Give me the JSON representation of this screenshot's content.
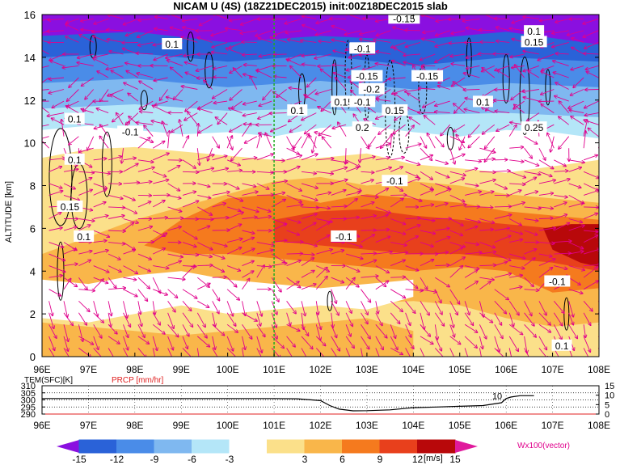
{
  "title": "NICAM U (4S) (18Z21DEC2015) init:00Z18DEC2015 slab",
  "colors": {
    "vector": "#e0008c",
    "precip_label": "#e02020",
    "marker_line": "#22aa22",
    "scale": [
      "#8a10e0",
      "#2a62d8",
      "#4a8ce8",
      "#7fb8f0",
      "#b4e6f8",
      "#ffffff",
      "#fbe08a",
      "#f9b64a",
      "#f57a1e",
      "#e8401c",
      "#b8080a",
      "#e01a9c"
    ]
  },
  "chart_data": [
    {
      "type": "heatmap",
      "title": "NICAM U (4S) (18Z21DEC2015) init:00Z18DEC2015 slab",
      "xlabel": "",
      "ylabel": "ALTITUDE [km]",
      "x_ticks": [
        "96E",
        "97E",
        "98E",
        "99E",
        "100E",
        "101E",
        "102E",
        "103E",
        "104E",
        "105E",
        "106E",
        "107E",
        "108E"
      ],
      "y_ticks": [
        "0",
        "2",
        "4",
        "6",
        "8",
        "10",
        "12",
        "14",
        "16"
      ],
      "xlim": [
        96,
        108
      ],
      "ylim": [
        0,
        16
      ],
      "vertical_marker_x": 101,
      "contour_labels": [
        {
          "text": "0.1",
          "x": 98.8,
          "y": 14.6
        },
        {
          "text": "-0.1",
          "x": 102.9,
          "y": 14.4
        },
        {
          "text": "-0.15",
          "x": 103.8,
          "y": 15.8
        },
        {
          "text": "0.1",
          "x": 106.6,
          "y": 15.2
        },
        {
          "text": "0.15",
          "x": 106.6,
          "y": 14.7
        },
        {
          "text": "-0.15",
          "x": 103.0,
          "y": 13.1
        },
        {
          "text": "-0.15",
          "x": 104.3,
          "y": 13.1
        },
        {
          "text": "-0.2",
          "x": 103.1,
          "y": 12.5
        },
        {
          "text": "0.15",
          "x": 102.5,
          "y": 11.9
        },
        {
          "text": "-0.1",
          "x": 102.9,
          "y": 11.9
        },
        {
          "text": "0.1",
          "x": 101.5,
          "y": 11.5
        },
        {
          "text": "0.15",
          "x": 103.6,
          "y": 11.5
        },
        {
          "text": "0.1",
          "x": 105.5,
          "y": 11.9
        },
        {
          "text": "0.1",
          "x": 96.7,
          "y": 11.1
        },
        {
          "text": "-0.1",
          "x": 97.9,
          "y": 10.5
        },
        {
          "text": "0.2",
          "x": 102.9,
          "y": 10.7
        },
        {
          "text": "0.25",
          "x": 106.6,
          "y": 10.7
        },
        {
          "text": "0.1",
          "x": 96.7,
          "y": 9.2
        },
        {
          "text": "-0.1",
          "x": 103.6,
          "y": 8.2
        },
        {
          "text": "0.15",
          "x": 96.6,
          "y": 7.0
        },
        {
          "text": "0.1",
          "x": 96.9,
          "y": 5.6
        },
        {
          "text": "-0.1",
          "x": 102.5,
          "y": 5.6
        },
        {
          "text": "-0.1",
          "x": 107.1,
          "y": 3.5
        },
        {
          "text": "0.1",
          "x": 107.2,
          "y": 0.5
        }
      ]
    },
    {
      "type": "line",
      "series": [
        {
          "name": "TEM(SFC)[K]",
          "x": [
            96,
            97,
            98,
            99,
            100,
            101,
            101.5,
            102,
            102.2,
            102.4,
            102.7,
            103,
            103.5,
            104,
            104.5,
            105,
            105.5,
            105.9,
            106,
            106.1,
            106.3,
            106.6
          ],
          "values": [
            301,
            301,
            301,
            301,
            301,
            301,
            300.8,
            299.5,
            296,
            293.5,
            292.3,
            292.4,
            293,
            294.5,
            295,
            295.5,
            296,
            298,
            301,
            302,
            303,
            303
          ]
        },
        {
          "name": "PRCP [mm/hr]",
          "x": [
            96,
            108
          ],
          "values": [
            0,
            0
          ]
        }
      ],
      "series_labels": [
        "TEM(SFC)[K]",
        "PRCP [mm/hr]"
      ],
      "x_ticks": [
        "96E",
        "97E",
        "98E",
        "99E",
        "100E",
        "101E",
        "102E",
        "103E",
        "104E",
        "105E",
        "106E",
        "107E",
        "108E"
      ],
      "y_left_ticks": [
        "290",
        "295",
        "300",
        "305",
        "310"
      ],
      "y_right_ticks": [
        "0",
        "5",
        "10",
        "15"
      ],
      "ylim_left": [
        290,
        310
      ],
      "ylim_right": [
        0,
        15
      ],
      "annotation": "10"
    }
  ],
  "colorbar": {
    "ticks": [
      "-15",
      "-12",
      "-9",
      "-6",
      "-3",
      "3",
      "6",
      "9",
      "12",
      "15"
    ],
    "unit": "[m/s]",
    "vector_label": "Wx100(vector)"
  }
}
